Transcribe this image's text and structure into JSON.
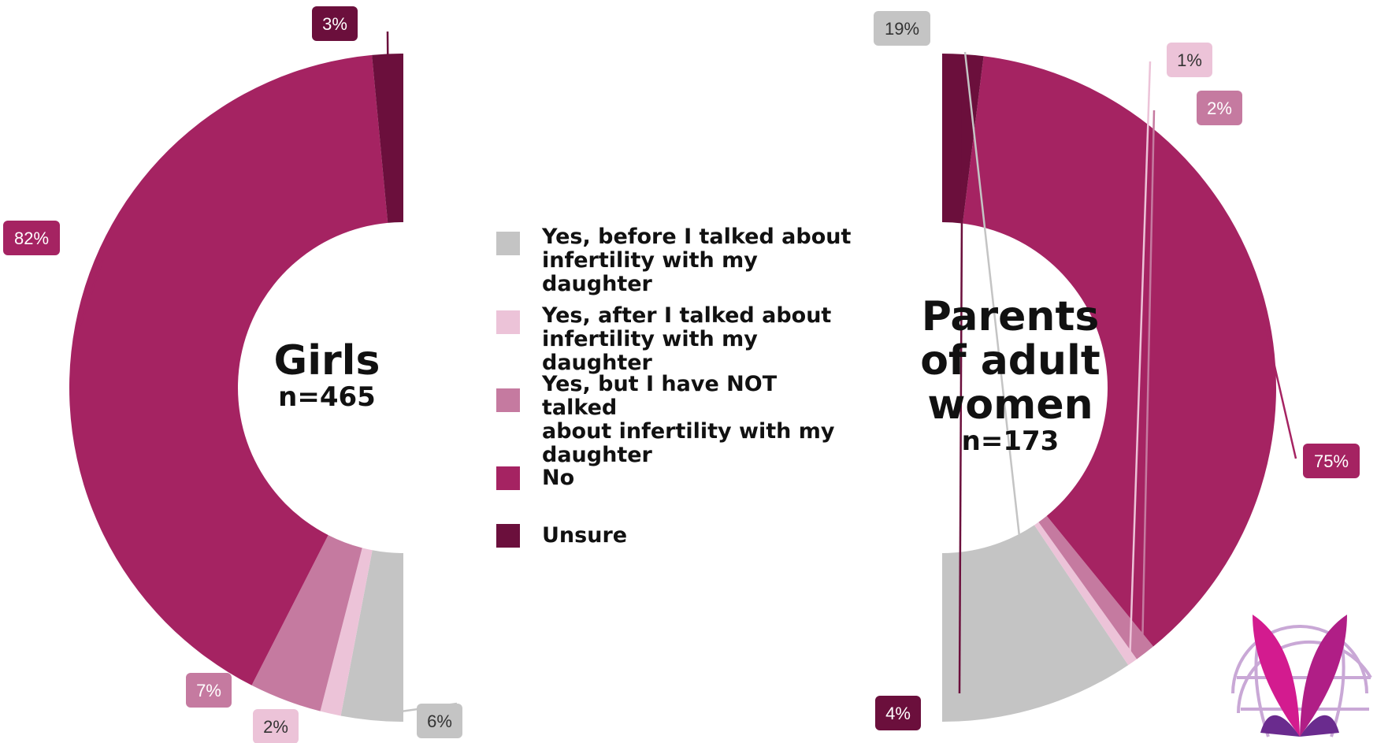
{
  "colors": {
    "yes_before": "#c4c4c4",
    "yes_after": "#ecc3d8",
    "yes_not": "#c57aa0",
    "no": "#a52362",
    "unsure": "#6b0f3c"
  },
  "chart_data": [
    {
      "type": "pie",
      "title": "Girls",
      "subtitle": "n=465",
      "categories": [
        "Yes, before I talked about infertility with my daughter",
        "Yes, after I talked about infertility with my daughter",
        "Yes, but I have NOT talked about infertility with my daughter",
        "No",
        "Unsure"
      ],
      "values": [
        6,
        2,
        7,
        82,
        3
      ],
      "labels": [
        "6%",
        "2%",
        "7%",
        "82%",
        "3%"
      ]
    },
    {
      "type": "pie",
      "title": "Parents of adult women",
      "subtitle": "n=173",
      "categories": [
        "Yes, before I talked about infertility with my daughter",
        "Yes, after I talked about infertility with my daughter",
        "Yes, but I have NOT talked about infertility with my daughter",
        "No",
        "Unsure"
      ],
      "values": [
        19,
        1,
        2,
        75,
        4
      ],
      "labels": [
        "19%",
        "1%",
        "2%",
        "75%",
        "4%"
      ]
    }
  ],
  "girls": {
    "title": "Girls",
    "n": "n=465"
  },
  "parents": {
    "title_line1": "Parents",
    "title_line2": "of adult",
    "title_line3": "women",
    "n": "n=173"
  },
  "legend": [
    {
      "line1": "Yes, before I talked about",
      "line2": "infertility with my daughter",
      "line3": ""
    },
    {
      "line1": "Yes, after I talked about",
      "line2": "infertility with my daughter",
      "line3": ""
    },
    {
      "line1": "Yes, but I have NOT talked",
      "line2": "about infertility with my",
      "line3": "daughter"
    },
    {
      "line1": "No",
      "line2": "",
      "line3": ""
    },
    {
      "line1": "Unsure",
      "line2": "",
      "line3": ""
    }
  ]
}
